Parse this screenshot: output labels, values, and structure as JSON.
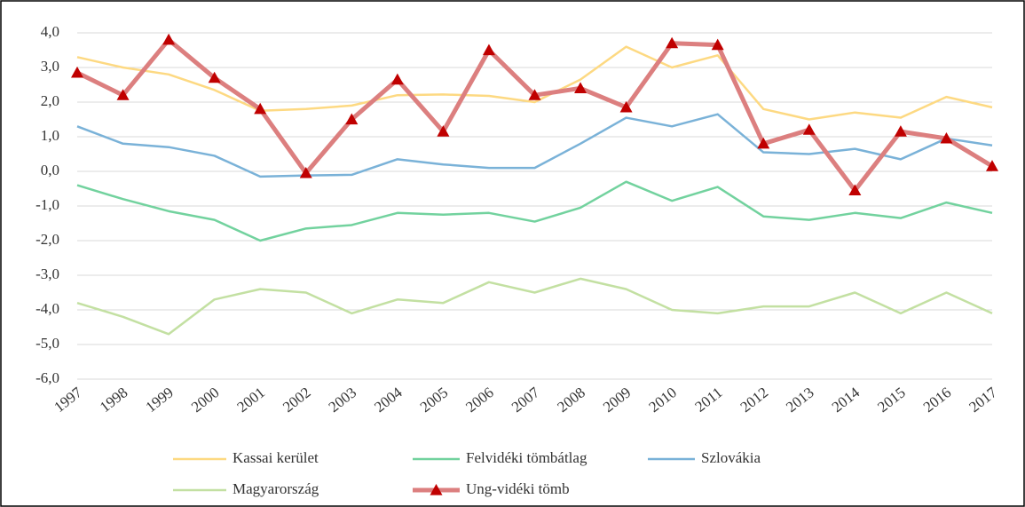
{
  "chart_data": {
    "type": "line",
    "categories": [
      "1997",
      "1998",
      "1999",
      "2000",
      "2001",
      "2002",
      "2003",
      "2004",
      "2005",
      "2006",
      "2007",
      "2008",
      "2009",
      "2010",
      "2011",
      "2012",
      "2013",
      "2014",
      "2015",
      "2016",
      "2017"
    ],
    "series": [
      {
        "name": "Kassai kerület",
        "color": "#fdd982",
        "values": [
          3.3,
          3.0,
          2.8,
          2.35,
          1.75,
          1.8,
          1.9,
          2.2,
          2.22,
          2.18,
          2.0,
          2.65,
          3.6,
          3.0,
          3.35,
          1.8,
          1.5,
          1.7,
          1.55,
          2.15,
          1.85
        ]
      },
      {
        "name": "Felvidéki tömbátlag",
        "color": "#72d29e",
        "values": [
          -0.4,
          -0.8,
          -1.15,
          -1.4,
          -2.0,
          -1.65,
          -1.55,
          -1.2,
          -1.25,
          -1.2,
          -1.45,
          -1.05,
          -0.3,
          -0.85,
          -0.45,
          -1.3,
          -1.4,
          -1.2,
          -1.35,
          -0.9,
          -1.2
        ]
      },
      {
        "name": "Szlovákia",
        "color": "#7ab2d8",
        "values": [
          1.3,
          0.8,
          0.7,
          0.45,
          -0.15,
          -0.12,
          -0.1,
          0.35,
          0.2,
          0.1,
          0.1,
          0.8,
          1.55,
          1.3,
          1.65,
          0.55,
          0.5,
          0.65,
          0.35,
          0.95,
          0.75
        ]
      },
      {
        "name": "Magyarország",
        "color": "#c3e0a2",
        "values": [
          -3.8,
          -4.2,
          -4.7,
          -3.7,
          -3.4,
          -3.5,
          -4.1,
          -3.7,
          -3.8,
          -3.2,
          -3.5,
          -3.1,
          -3.4,
          -4.0,
          -4.1,
          -3.9,
          -3.9,
          -3.5,
          -4.1,
          -3.5,
          -4.1
        ]
      },
      {
        "name": "Ung-vidéki tömb",
        "color": "#dc7f7f",
        "marker": "triangle",
        "marker_color": "#c00000",
        "values": [
          2.85,
          2.2,
          3.8,
          2.7,
          1.8,
          -0.05,
          1.5,
          2.65,
          1.15,
          3.5,
          2.2,
          2.4,
          1.85,
          3.7,
          3.65,
          0.8,
          1.2,
          -0.55,
          1.15,
          0.95,
          0.15
        ]
      }
    ],
    "ylim": [
      -6,
      4
    ],
    "yticks": [
      {
        "value": -6,
        "label": "-6,0"
      },
      {
        "value": -5,
        "label": "-5,0"
      },
      {
        "value": -4,
        "label": "-4,0"
      },
      {
        "value": -3,
        "label": "-3,0"
      },
      {
        "value": -2,
        "label": "-2,0"
      },
      {
        "value": -1,
        "label": "-1,0"
      },
      {
        "value": 0,
        "label": "0,0"
      },
      {
        "value": 1,
        "label": "1,0"
      },
      {
        "value": 2,
        "label": "2,0"
      },
      {
        "value": 3,
        "label": "3,0"
      },
      {
        "value": 4,
        "label": "4,0"
      }
    ],
    "grid": true,
    "legend": "bottom"
  }
}
